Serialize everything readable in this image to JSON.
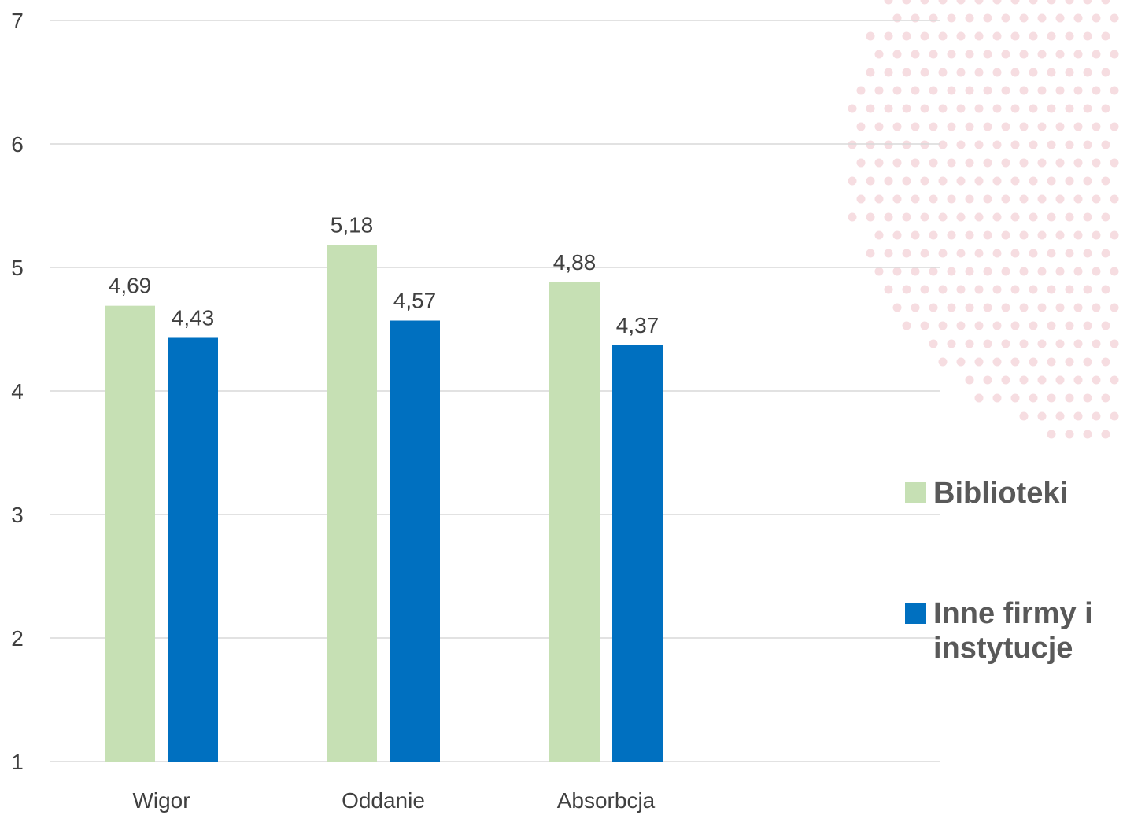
{
  "chart_data": {
    "type": "bar",
    "categories": [
      "Wigor",
      "Oddanie",
      "Absorbcja"
    ],
    "series": [
      {
        "name": "Biblioteki",
        "values": [
          4.69,
          5.18,
          4.88
        ],
        "color": "#c6e0b4",
        "labels": [
          "4,69",
          "5,18",
          "4,88"
        ]
      },
      {
        "name": "Inne firmy i instytucje",
        "values": [
          4.43,
          4.57,
          4.37
        ],
        "color": "#0070c0",
        "labels": [
          "4,43",
          "4,57",
          "4,37"
        ]
      }
    ],
    "ylim": [
      1,
      7
    ],
    "yticks": [
      "1",
      "2",
      "3",
      "4",
      "5",
      "6",
      "7"
    ],
    "grid": true,
    "legend_position": "right",
    "title": "",
    "xlabel": "",
    "ylabel": ""
  },
  "legend": {
    "item1": "Biblioteki",
    "item2": "Inne firmy i instytucje"
  },
  "colors": {
    "accent_dots": "#f6dde1"
  }
}
